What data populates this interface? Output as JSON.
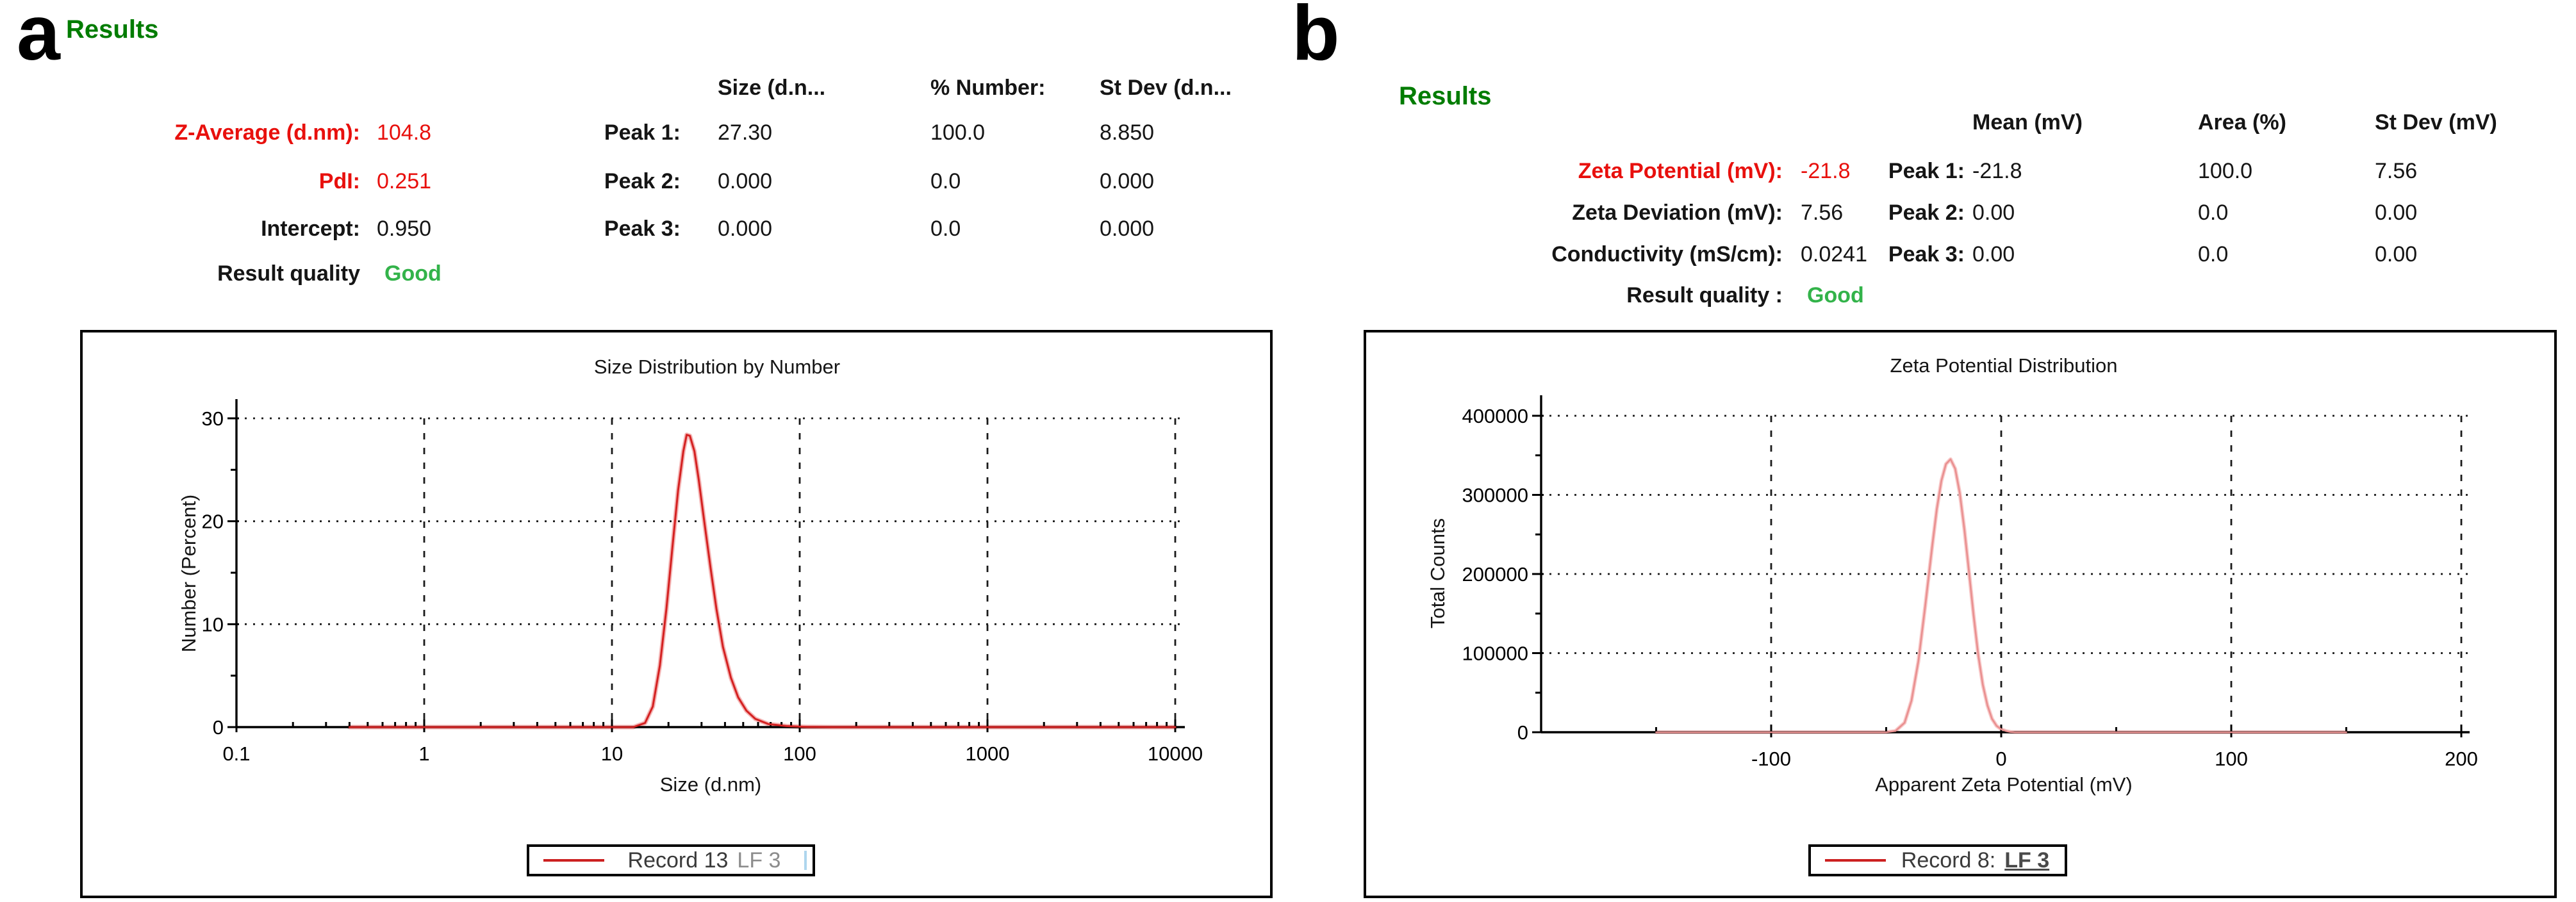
{
  "colors": {
    "results_heading_green": "#007c00",
    "good_green": "#33b34a",
    "accent_red": "#e8100d",
    "curve_a_red": "#d42121",
    "curve_b_pink": "#e98f8f",
    "legend_caret_blue": "#aed6ee"
  },
  "panel_a": {
    "panel_label": "a",
    "results_title": "Results",
    "summary": [
      {
        "label": "Z-Average (d.nm):",
        "value": "104.8"
      },
      {
        "label": "PdI:",
        "value": "0.251"
      },
      {
        "label": "Intercept:",
        "value": "0.950"
      },
      {
        "label": "Result quality",
        "value": "Good"
      }
    ],
    "table": {
      "headers": [
        "Size (d.n...",
        "% Number:",
        "St Dev (d.n..."
      ],
      "rows": [
        {
          "label": "Peak 1:",
          "values": [
            "27.30",
            "100.0",
            "8.850"
          ]
        },
        {
          "label": "Peak 2:",
          "values": [
            "0.000",
            "0.0",
            "0.000"
          ]
        },
        {
          "label": "Peak 3:",
          "values": [
            "0.000",
            "0.0",
            "0.000"
          ]
        }
      ]
    },
    "legend": {
      "primary": "Record 13",
      "secondary": "LF 3"
    }
  },
  "panel_b": {
    "panel_label": "b",
    "results_title": "Results",
    "summary": [
      {
        "label": "Zeta Potential (mV):",
        "value": "-21.8"
      },
      {
        "label": "Zeta Deviation (mV):",
        "value": "7.56"
      },
      {
        "label": "Conductivity (mS/cm):",
        "value": "0.0241"
      },
      {
        "label": "Result quality :",
        "value": "Good"
      }
    ],
    "table": {
      "headers": [
        "Mean (mV)",
        "Area (%)",
        "St Dev (mV)"
      ],
      "rows": [
        {
          "label": "Peak 1:",
          "values": [
            "-21.8",
            "100.0",
            "7.56"
          ]
        },
        {
          "label": "Peak 2:",
          "values": [
            "0.00",
            "0.0",
            "0.00"
          ]
        },
        {
          "label": "Peak 3:",
          "values": [
            "0.00",
            "0.0",
            "0.00"
          ]
        }
      ]
    },
    "legend": {
      "primary": "Record 8:",
      "secondary": "LF 3"
    }
  },
  "chart_data": [
    {
      "id": "a",
      "type": "line",
      "title": "Size Distribution by Number",
      "xlabel": "Size (d.nm)",
      "ylabel": "Number (Percent)",
      "xscale": "log",
      "xlim": [
        0.1,
        10000
      ],
      "ylim": [
        0,
        30
      ],
      "grid": true,
      "legend_position": "bottom",
      "xticks": [
        {
          "v": 0.1,
          "label": "0.1"
        },
        {
          "v": 1,
          "label": "1"
        },
        {
          "v": 10,
          "label": "10"
        },
        {
          "v": 100,
          "label": "100"
        },
        {
          "v": 1000,
          "label": "1000"
        },
        {
          "v": 10000,
          "label": "10000"
        }
      ],
      "yticks": [
        {
          "v": 0,
          "label": "0"
        },
        {
          "v": 10,
          "label": "10"
        },
        {
          "v": 20,
          "label": "20"
        },
        {
          "v": 30,
          "label": "30"
        }
      ],
      "x_gridlines": [
        1,
        10,
        100,
        1000,
        10000
      ],
      "y_gridlines": [
        10,
        20,
        30
      ],
      "y_minor_ticks": [
        5,
        15,
        25
      ],
      "series": [
        {
          "name": "Record 13 LF 3",
          "color": "#d42121",
          "halo_color": "#f4b6b6",
          "core_width": 3,
          "halo_width": 7,
          "peak_mode_dnm": 25,
          "peak_max_percent": 28.4,
          "points": [
            [
              0.4,
              0
            ],
            [
              13,
              0
            ],
            [
              15,
              0.4
            ],
            [
              16.5,
              2
            ],
            [
              18,
              6
            ],
            [
              19.5,
              11.5
            ],
            [
              21,
              17.5
            ],
            [
              22.5,
              23
            ],
            [
              24,
              26.8
            ],
            [
              25,
              28.4
            ],
            [
              26,
              28.3
            ],
            [
              27.5,
              26.8
            ],
            [
              29,
              24
            ],
            [
              31,
              20
            ],
            [
              33.5,
              15.5
            ],
            [
              36,
              11.5
            ],
            [
              39,
              7.8
            ],
            [
              43,
              4.8
            ],
            [
              47,
              2.9
            ],
            [
              52,
              1.6
            ],
            [
              58,
              0.8
            ],
            [
              68,
              0.3
            ],
            [
              85,
              0.1
            ],
            [
              110,
              0.02
            ],
            [
              150,
              0
            ],
            [
              10000,
              0
            ]
          ]
        }
      ]
    },
    {
      "id": "b",
      "type": "line",
      "title": "Zeta Potential Distribution",
      "xlabel": "Apparent Zeta Potential (mV)",
      "ylabel": "Total Counts",
      "xscale": "linear",
      "xlim": [
        -200,
        200
      ],
      "ylim": [
        0,
        400000
      ],
      "grid": true,
      "legend_position": "bottom",
      "xticks": [
        {
          "v": -100,
          "label": "-100"
        },
        {
          "v": 0,
          "label": "0"
        },
        {
          "v": 100,
          "label": "100"
        },
        {
          "v": 200,
          "label": "200"
        }
      ],
      "yticks": [
        {
          "v": 0,
          "label": "0"
        },
        {
          "v": 100000,
          "label": "100000"
        },
        {
          "v": 200000,
          "label": "200000"
        },
        {
          "v": 300000,
          "label": "300000"
        },
        {
          "v": 400000,
          "label": "400000"
        }
      ],
      "x_gridlines": [
        -100,
        0,
        100,
        200
      ],
      "y_gridlines": [
        100000,
        200000,
        300000,
        400000
      ],
      "x_minor_ticks": [
        -150,
        -50,
        50,
        150
      ],
      "y_minor_ticks": [
        50000,
        150000,
        250000,
        350000
      ],
      "series": [
        {
          "name": "Record 8: LF 3",
          "color": "#e98f8f",
          "halo_color": "#f8caca",
          "core_width": 2.6,
          "halo_width": 6,
          "peak_mode_mv": -22,
          "peak_max_counts": 345000,
          "points": [
            [
              -150,
              0
            ],
            [
              -50,
              0
            ],
            [
              -46,
              1500
            ],
            [
              -42,
              12000
            ],
            [
              -39,
              40000
            ],
            [
              -36,
              90000
            ],
            [
              -33,
              160000
            ],
            [
              -30,
              235000
            ],
            [
              -28,
              282000
            ],
            [
              -26,
              318000
            ],
            [
              -24,
              339000
            ],
            [
              -22,
              345000
            ],
            [
              -20,
              333000
            ],
            [
              -18,
              302000
            ],
            [
              -16,
              256000
            ],
            [
              -14,
              203000
            ],
            [
              -12,
              148000
            ],
            [
              -10,
              98000
            ],
            [
              -8,
              60000
            ],
            [
              -6,
              34000
            ],
            [
              -4,
              17000
            ],
            [
              -2,
              8000
            ],
            [
              0,
              3800
            ],
            [
              2,
              1500
            ],
            [
              4,
              300
            ],
            [
              6,
              0
            ],
            [
              150,
              0
            ]
          ]
        }
      ]
    }
  ]
}
